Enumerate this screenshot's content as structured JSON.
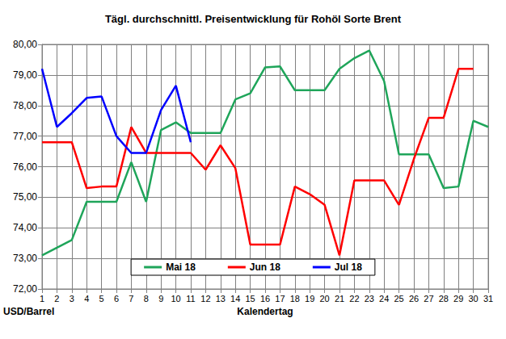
{
  "chart_data": {
    "type": "line",
    "title": "Tägl. durchschnittl. Preisentwicklung für Rohöl Sorte Brent",
    "x_label": "Kalendertag",
    "y_label": "USD/Barrel",
    "categories": [
      1,
      2,
      3,
      4,
      5,
      6,
      7,
      8,
      9,
      10,
      11,
      12,
      13,
      14,
      15,
      16,
      17,
      18,
      19,
      20,
      21,
      22,
      23,
      24,
      25,
      26,
      27,
      28,
      29,
      30,
      31
    ],
    "series": [
      {
        "name": "Mai 18",
        "color": "#1fa55a",
        "values": [
          73.1,
          73.35,
          73.6,
          74.85,
          74.85,
          74.85,
          76.15,
          74.85,
          77.2,
          77.45,
          77.1,
          77.1,
          77.1,
          78.2,
          78.4,
          79.25,
          79.28,
          78.5,
          78.5,
          78.5,
          79.2,
          79.55,
          79.8,
          78.8,
          76.4,
          76.4,
          76.4,
          75.3,
          75.35,
          77.5,
          77.3
        ]
      },
      {
        "name": "Jun 18",
        "color": "#ff0000",
        "values": [
          76.8,
          76.8,
          76.8,
          75.3,
          75.35,
          75.35,
          77.3,
          76.45,
          76.45,
          76.45,
          76.45,
          75.9,
          76.7,
          75.95,
          73.45,
          73.45,
          73.45,
          75.35,
          75.1,
          74.75,
          73.1,
          75.55,
          75.55,
          75.55,
          74.75,
          76.25,
          77.6,
          77.6,
          79.2,
          79.2,
          null
        ]
      },
      {
        "name": "Jul 18",
        "color": "#0000ff",
        "values": [
          79.2,
          77.3,
          77.75,
          78.25,
          78.3,
          77.0,
          76.45,
          76.45,
          77.85,
          78.65,
          76.8,
          null,
          null,
          null,
          null,
          null,
          null,
          null,
          null,
          null,
          null,
          null,
          null,
          null,
          null,
          null,
          null,
          null,
          null,
          null,
          null
        ]
      }
    ],
    "ylim": [
      72,
      80
    ],
    "yticks": [
      {
        "value": 72,
        "label": "72,00"
      },
      {
        "value": 73,
        "label": "73,00"
      },
      {
        "value": 74,
        "label": "74,00"
      },
      {
        "value": 75,
        "label": "75,00"
      },
      {
        "value": 76,
        "label": "76,00"
      },
      {
        "value": 77,
        "label": "77,00"
      },
      {
        "value": 78,
        "label": "78,00"
      },
      {
        "value": 79,
        "label": "79,00"
      },
      {
        "value": 80,
        "label": "80,00"
      }
    ],
    "grid": true,
    "legend": "bottom"
  }
}
